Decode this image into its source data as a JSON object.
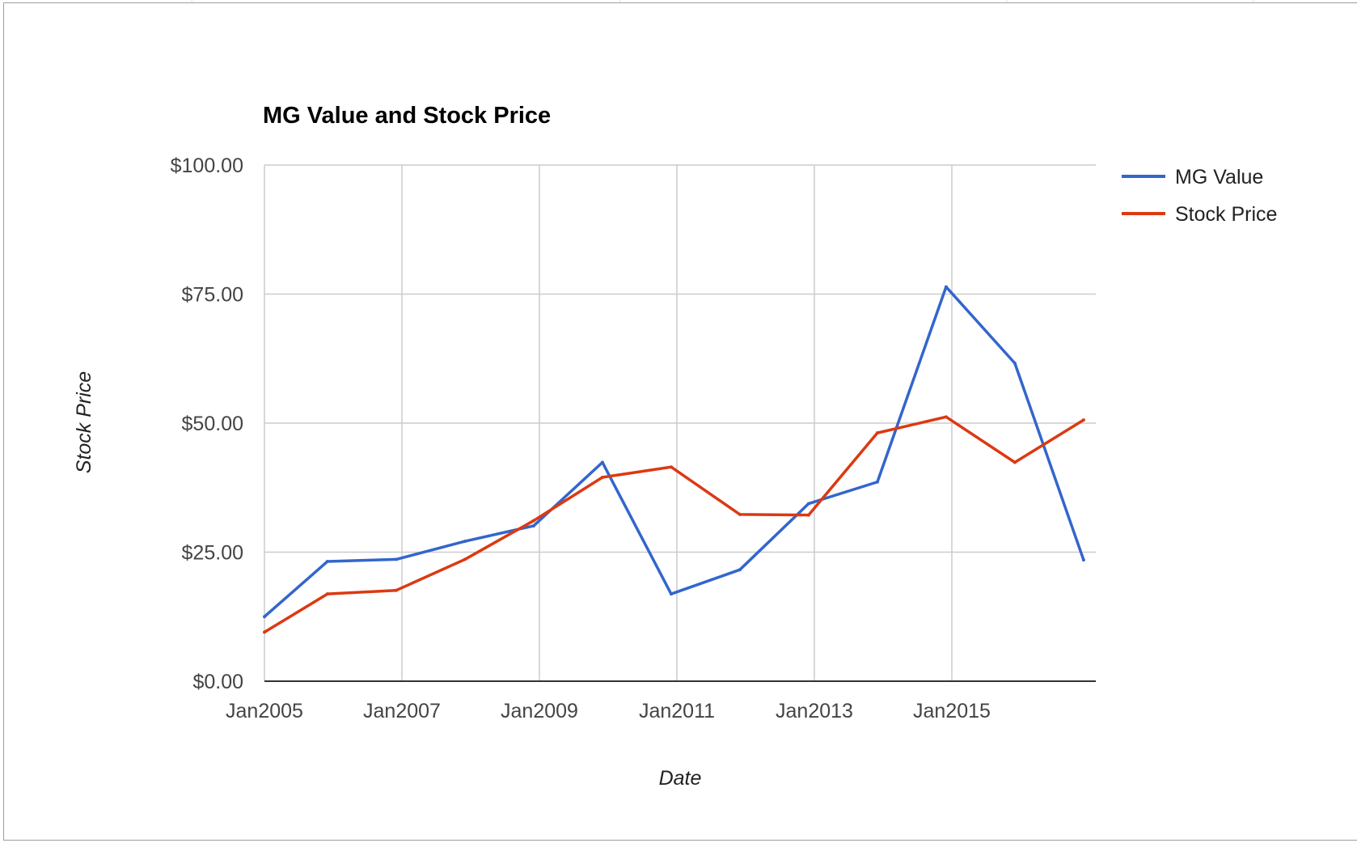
{
  "chart_data": {
    "type": "line",
    "title": "MG Value and Stock Price",
    "xlabel": "Date",
    "ylabel": "Stock Price",
    "x_tick_labels": [
      "Jan2005",
      "Jan2007",
      "Jan2009",
      "Jan2011",
      "Jan2013",
      "Jan2015"
    ],
    "y_tick_labels": [
      "$0.00",
      "$25.00",
      "$50.00",
      "$75.00",
      "$100.00"
    ],
    "y_ticks": [
      0,
      25,
      50,
      75,
      100
    ],
    "ylim": [
      0,
      100
    ],
    "x": [
      "2005-01",
      "2005-12",
      "2006-12",
      "2007-12",
      "2008-12",
      "2009-12",
      "2010-12",
      "2011-12",
      "2012-12",
      "2013-12",
      "2014-12",
      "2015-12",
      "2016-12"
    ],
    "series": [
      {
        "name": "MG Value",
        "color": "#3366cc",
        "values": [
          12.5,
          23.2,
          23.6,
          27.1,
          30.1,
          42.4,
          16.9,
          21.6,
          34.4,
          38.6,
          76.4,
          61.6,
          23.5
        ]
      },
      {
        "name": "Stock Price",
        "color": "#dc3912",
        "values": [
          9.5,
          16.9,
          17.6,
          23.6,
          31.1,
          39.5,
          41.5,
          32.3,
          32.2,
          48.1,
          51.2,
          42.4,
          50.6
        ]
      }
    ],
    "grid": true,
    "legend_position": "right"
  }
}
